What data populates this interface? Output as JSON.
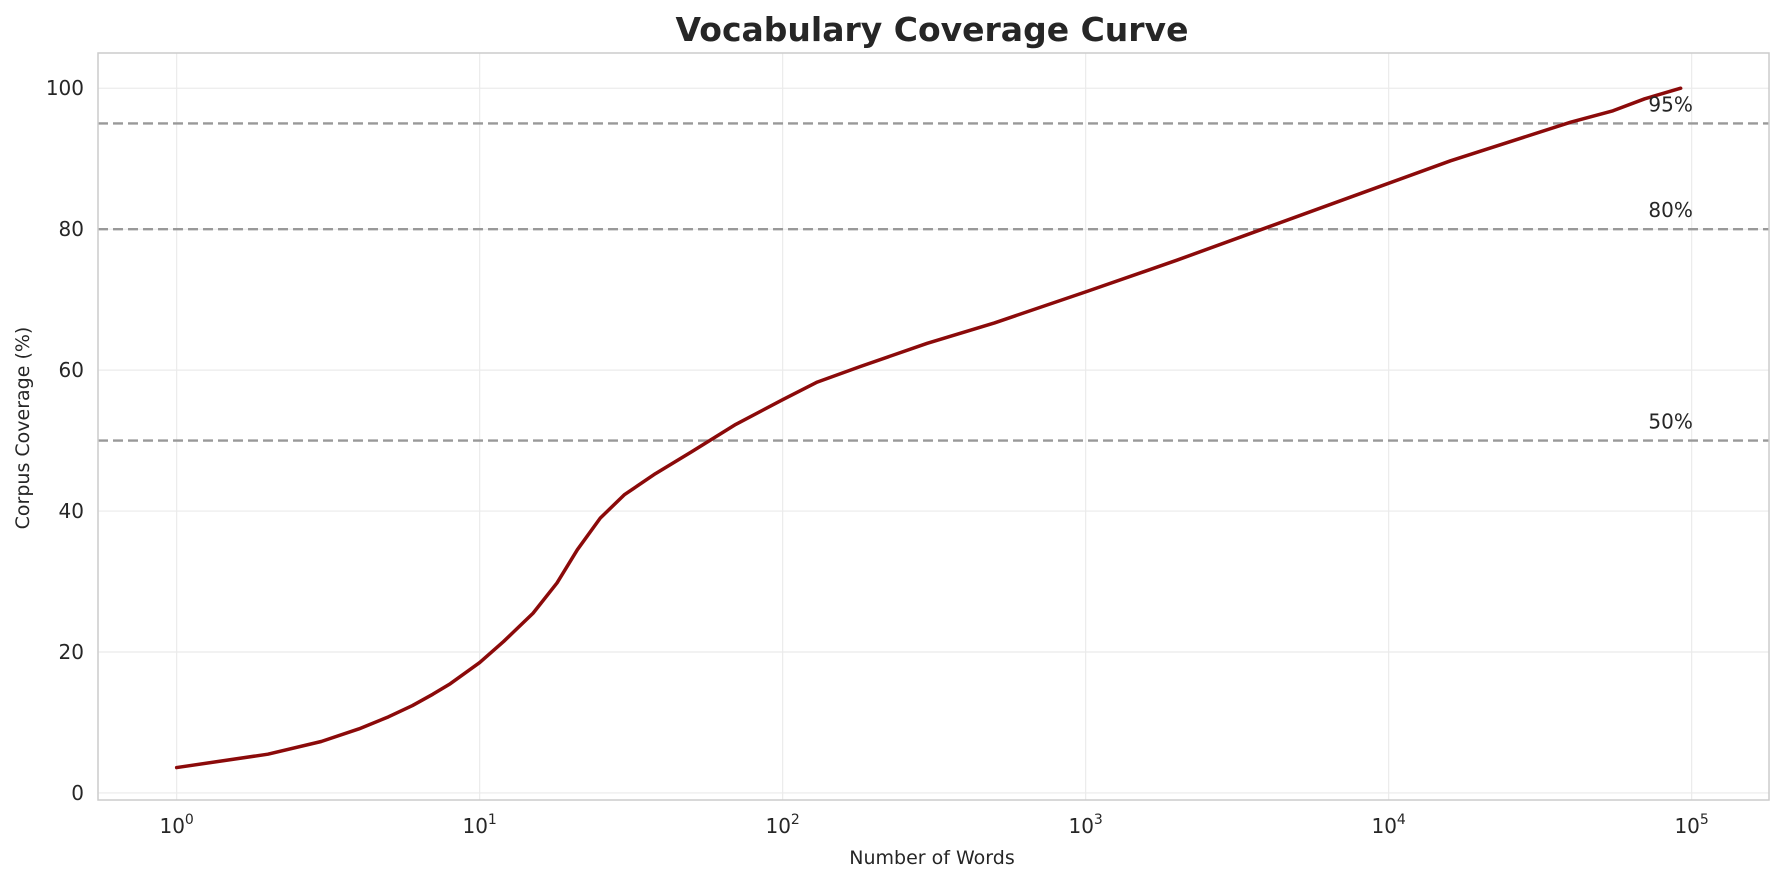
{
  "chart_data": {
    "type": "line",
    "title": "Vocabulary Coverage Curve",
    "xlabel": "Number of Words",
    "ylabel": "Corpus Coverage (%)",
    "x_scale": "log",
    "xlim": [
      0.55,
      180000
    ],
    "ylim": [
      -1,
      105
    ],
    "x_ticks": [
      {
        "value": 1,
        "base": "10",
        "exp": "0"
      },
      {
        "value": 10,
        "base": "10",
        "exp": "1"
      },
      {
        "value": 100,
        "base": "10",
        "exp": "2"
      },
      {
        "value": 1000,
        "base": "10",
        "exp": "3"
      },
      {
        "value": 10000,
        "base": "10",
        "exp": "4"
      },
      {
        "value": 100000,
        "base": "10",
        "exp": "5"
      }
    ],
    "y_ticks": [
      0,
      20,
      40,
      60,
      80,
      100
    ],
    "grid": true,
    "colors": {
      "line": "#8b0a0a",
      "reference": "#999999"
    },
    "series": [
      {
        "x": [
          1,
          2,
          3,
          4,
          5,
          6,
          7,
          8,
          10,
          12,
          15,
          18,
          21,
          25,
          30,
          38,
          50,
          70,
          100,
          130,
          180,
          300,
          500,
          1000,
          2000,
          4000,
          8000,
          16000,
          40000,
          55000,
          70000,
          92000
        ],
        "y": [
          3.6,
          5.5,
          7.3,
          9.1,
          10.8,
          12.4,
          14.0,
          15.5,
          18.5,
          21.5,
          25.5,
          29.8,
          34.5,
          39.0,
          42.3,
          45.3,
          48.4,
          52.3,
          55.8,
          58.3,
          60.5,
          63.8,
          66.7,
          71.1,
          75.6,
          80.3,
          85.0,
          89.7,
          95.2,
          96.8,
          98.5,
          100.0
        ]
      }
    ],
    "reference_lines": [
      {
        "y": 95,
        "label": "95%"
      },
      {
        "y": 80,
        "label": "80%"
      },
      {
        "y": 50,
        "label": "50%"
      }
    ]
  }
}
